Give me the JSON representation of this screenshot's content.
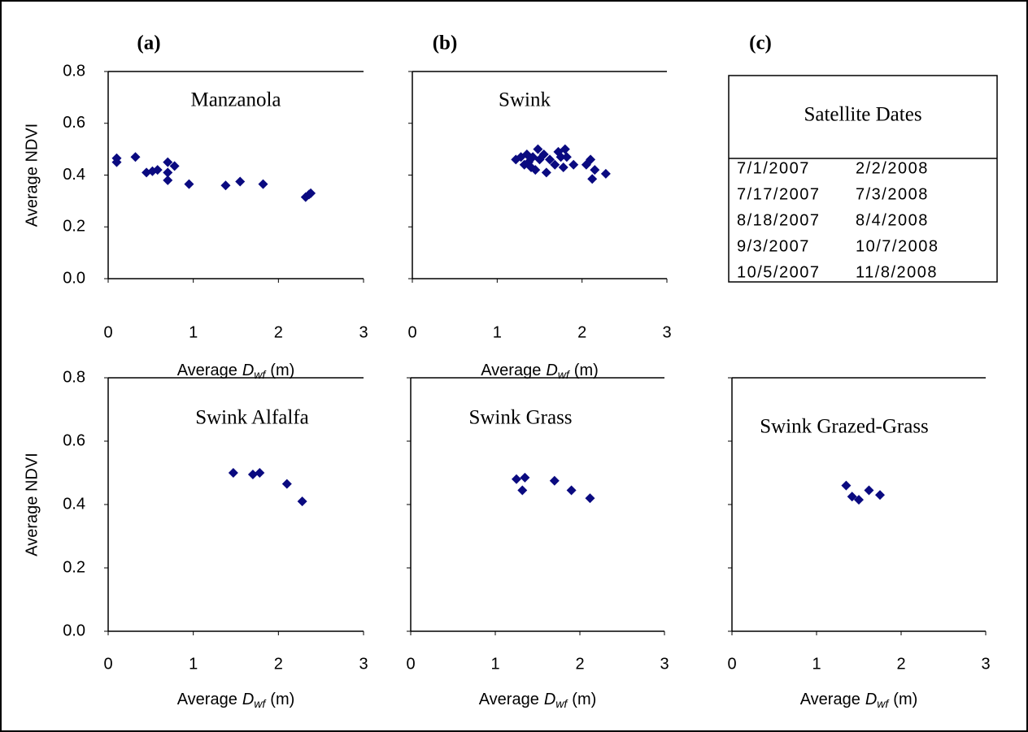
{
  "chart_data": [
    {
      "type": "scatter",
      "panel_label": "(a)",
      "title": "Manzanola",
      "color": "#0a0a80",
      "x": [
        0.1,
        0.1,
        0.32,
        0.45,
        0.52,
        0.58,
        0.7,
        0.7,
        0.7,
        0.78,
        0.95,
        1.38,
        1.55,
        1.82,
        2.32,
        2.36,
        2.38
      ],
      "values": [
        0.45,
        0.465,
        0.47,
        0.41,
        0.415,
        0.42,
        0.45,
        0.41,
        0.38,
        0.435,
        0.365,
        0.36,
        0.375,
        0.365,
        0.315,
        0.325,
        0.33
      ],
      "xlim": [
        0,
        3
      ],
      "xticks": [
        0,
        1,
        2,
        3
      ],
      "ylim": [
        0,
        0.8
      ],
      "yticks": [
        {
          "value": 0,
          "label": "0.0"
        },
        0.2,
        0.4,
        0.6,
        0.8
      ],
      "ytick_labels": true,
      "ylabel": "Average NDVI",
      "xlabel": [
        "Average",
        "D",
        "wf",
        "(m)"
      ]
    },
    {
      "type": "scatter",
      "panel_label": "(b)",
      "title": "Swink",
      "color": "#0a0a80",
      "x": [
        1.22,
        1.28,
        1.32,
        1.35,
        1.37,
        1.4,
        1.42,
        1.45,
        1.48,
        1.5,
        1.55,
        1.58,
        1.62,
        1.68,
        1.72,
        1.75,
        1.78,
        1.8,
        1.82,
        1.9,
        2.05,
        2.1,
        2.12,
        2.15,
        2.28
      ],
      "values": [
        0.46,
        0.47,
        0.44,
        0.48,
        0.45,
        0.43,
        0.47,
        0.42,
        0.5,
        0.46,
        0.48,
        0.41,
        0.46,
        0.44,
        0.49,
        0.47,
        0.43,
        0.5,
        0.47,
        0.44,
        0.44,
        0.46,
        0.385,
        0.42,
        0.405
      ],
      "xlim": [
        0,
        3
      ],
      "xticks": [
        0,
        1,
        2,
        3
      ],
      "ylim": [
        0,
        0.8
      ],
      "yticks": [
        0,
        0.2,
        0.4,
        0.6,
        0.8
      ],
      "ytick_labels": false,
      "xlabel": [
        "Average",
        "D",
        "wf",
        "(m)"
      ]
    },
    {
      "type": "scatter",
      "title": "Swink Alfalfa",
      "color": "#0a0a80",
      "x": [
        1.47,
        1.7,
        1.78,
        2.1,
        2.28
      ],
      "values": [
        0.5,
        0.495,
        0.5,
        0.465,
        0.41
      ],
      "xlim": [
        0,
        3
      ],
      "xticks": [
        0,
        1,
        2,
        3
      ],
      "ylim": [
        0,
        0.8
      ],
      "yticks": [
        {
          "value": 0,
          "label": "0.0"
        },
        0.2,
        0.4,
        0.6,
        0.8
      ],
      "ytick_labels": true,
      "ylabel": "Average NDVI",
      "xlabel": [
        "Average",
        "D",
        "wf",
        "(m)"
      ]
    },
    {
      "type": "scatter",
      "title": "Swink Grass",
      "color": "#0a0a80",
      "x": [
        1.25,
        1.32,
        1.35,
        1.7,
        1.9,
        2.12
      ],
      "values": [
        0.48,
        0.445,
        0.485,
        0.475,
        0.445,
        0.42
      ],
      "xlim": [
        0,
        3
      ],
      "xticks": [
        0,
        1,
        2,
        3
      ],
      "ylim": [
        0,
        0.8
      ],
      "yticks": [
        0,
        0.2,
        0.4,
        0.6,
        0.8
      ],
      "ytick_labels": false,
      "xlabel": [
        "Average",
        "D",
        "wf",
        "(m)"
      ]
    },
    {
      "type": "scatter",
      "title": "Swink Grazed-Grass",
      "color": "#0a0a80",
      "x": [
        1.35,
        1.42,
        1.5,
        1.62,
        1.75
      ],
      "values": [
        0.46,
        0.425,
        0.415,
        0.445,
        0.43
      ],
      "xlim": [
        0,
        3
      ],
      "xticks": [
        0,
        1,
        2,
        3
      ],
      "ylim": [
        0,
        0.8
      ],
      "yticks": [
        0,
        0.2,
        0.4,
        0.6,
        0.8
      ],
      "ytick_labels": false,
      "xlabel": [
        "Average",
        "D",
        "wf",
        "(m)"
      ]
    }
  ],
  "table": {
    "panel_label": "(c)",
    "title": "Satellite Dates",
    "rows": [
      [
        "7/1/2007",
        "2/2/2008"
      ],
      [
        "7/17/2007",
        "7/3/2008"
      ],
      [
        "8/18/2007",
        "8/4/2008"
      ],
      [
        "9/3/2007",
        "10/7/2008"
      ],
      [
        "10/5/2007",
        "11/8/2008"
      ]
    ]
  }
}
